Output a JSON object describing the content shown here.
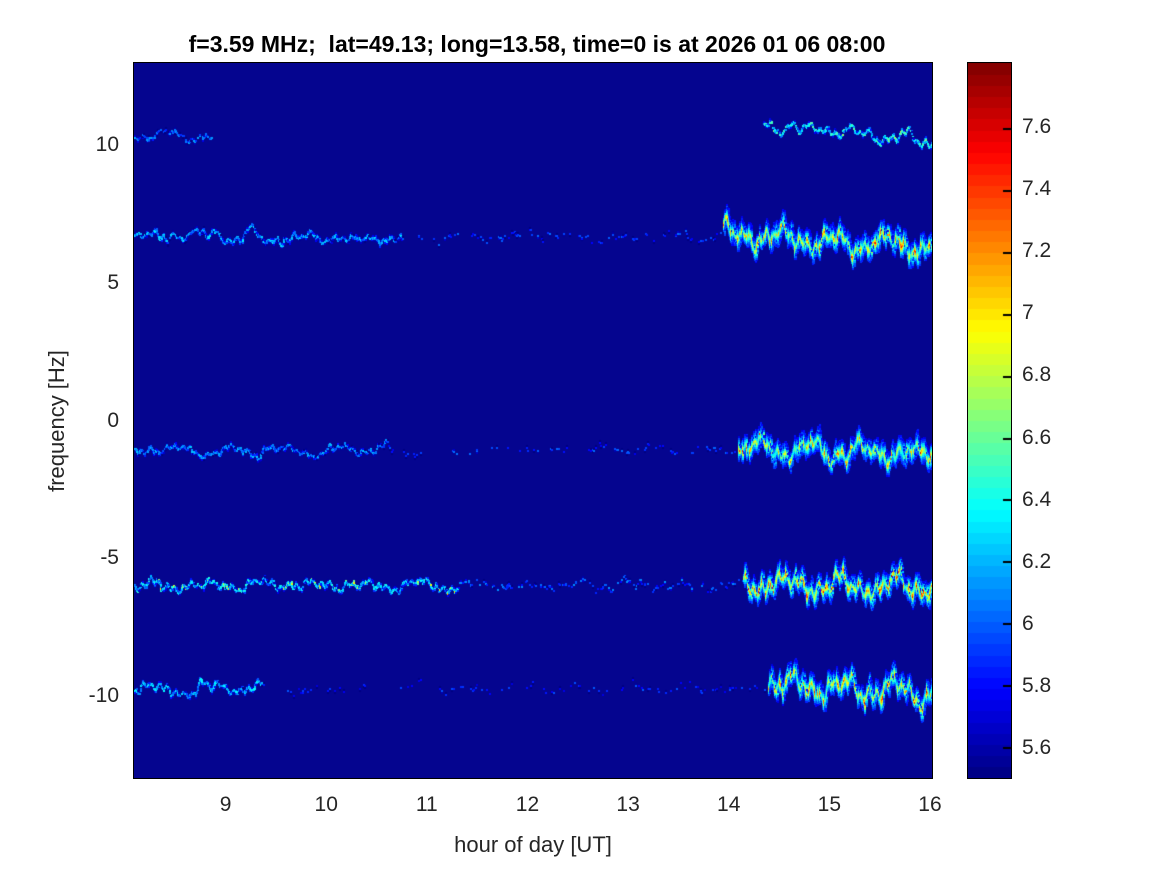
{
  "chart_data": {
    "type": "heatmap",
    "title": "f=3.59 MHz;  lat=49.13; long=13.58, time=0 is at 2026 01 06 08:00",
    "subtitle": "",
    "grid": false,
    "background_color": "#05058f",
    "x_axis": {
      "label": "hour of day [UT]",
      "range": [
        8.08,
        16.03
      ],
      "ticks": [
        {
          "label": "9",
          "value": 9
        },
        {
          "label": "10",
          "value": 10
        },
        {
          "label": "11",
          "value": 11
        },
        {
          "label": "12",
          "value": 12
        },
        {
          "label": "13",
          "value": 13
        },
        {
          "label": "14",
          "value": 14
        },
        {
          "label": "15",
          "value": 15
        },
        {
          "label": "16",
          "value": 16
        }
      ]
    },
    "y_axis": {
      "label": "frequency [Hz]",
      "range": [
        -13,
        13
      ],
      "ticks": [
        {
          "label": "10",
          "value": 10
        },
        {
          "label": "5",
          "value": 5
        },
        {
          "label": "0",
          "value": 0
        },
        {
          "label": "-5",
          "value": -5
        },
        {
          "label": "-10",
          "value": -10
        }
      ]
    },
    "colorbar": {
      "colormap": "jet",
      "range": [
        5.5,
        7.81
      ],
      "ticks": [
        {
          "label": "7.6",
          "value": 7.6
        },
        {
          "label": "7.4",
          "value": 7.4
        },
        {
          "label": "7.2",
          "value": 7.2
        },
        {
          "label": "7",
          "value": 7.0
        },
        {
          "label": "6.8",
          "value": 6.8
        },
        {
          "label": "6.6",
          "value": 6.6
        },
        {
          "label": "6.4",
          "value": 6.4
        },
        {
          "label": "6.2",
          "value": 6.2
        },
        {
          "label": "6",
          "value": 6.0
        },
        {
          "label": "5.8",
          "value": 5.8
        },
        {
          "label": "5.6",
          "value": 5.6
        }
      ]
    },
    "traces": [
      {
        "name": "doppler-mode-plus10",
        "center_hz": 10.35,
        "segments": [
          {
            "t0": 8.08,
            "t1": 8.85,
            "style": "line",
            "density": 0.5,
            "level": 5.95,
            "var": 0.35,
            "amp": 0.2
          },
          {
            "t0": 14.35,
            "t1": 16.03,
            "style": "line",
            "density": 0.78,
            "level": 6.25,
            "var": 0.5,
            "amp": 0.3,
            "off0": 0.45,
            "off1": -0.2,
            "fleck": 0.05,
            "peak": 6.9
          }
        ]
      },
      {
        "name": "doppler-mode-plus7",
        "center_hz": 6.7,
        "segments": [
          {
            "t0": 8.08,
            "t1": 10.75,
            "style": "line",
            "density": 0.88,
            "level": 6.05,
            "var": 0.45,
            "amp": 0.23,
            "off0": 0.05,
            "off1": -0.05
          },
          {
            "t0": 10.75,
            "t1": 13.95,
            "style": "sparse",
            "density": 0.12,
            "level": 5.85,
            "var": 0.3,
            "amp": 0.2
          },
          {
            "t0": 13.95,
            "t1": 16.03,
            "style": "strong",
            "density": 0.93,
            "level": 6.35,
            "peak": 7.65,
            "amp": 0.5,
            "off0": 0.1,
            "off1": -0.35
          }
        ]
      },
      {
        "name": "doppler-mode-minus1",
        "center_hz": -1.05,
        "segments": [
          {
            "t0": 8.08,
            "t1": 10.6,
            "style": "line",
            "density": 0.82,
            "level": 6.0,
            "var": 0.4,
            "amp": 0.2
          },
          {
            "t0": 10.6,
            "t1": 14.1,
            "style": "sparse",
            "density": 0.1,
            "level": 5.85,
            "var": 0.3,
            "amp": 0.18
          },
          {
            "t0": 14.1,
            "t1": 16.03,
            "style": "strong",
            "density": 0.9,
            "level": 6.3,
            "peak": 7.6,
            "amp": 0.45,
            "off0": 0.05,
            "off1": -0.1
          }
        ]
      },
      {
        "name": "doppler-mode-minus6",
        "center_hz": -5.95,
        "segments": [
          {
            "t0": 8.08,
            "t1": 11.3,
            "style": "line",
            "density": 0.95,
            "level": 6.15,
            "var": 0.5,
            "amp": 0.27,
            "fleck": 0.07,
            "peak": 7.1
          },
          {
            "t0": 11.3,
            "t1": 14.15,
            "style": "sparse",
            "density": 0.22,
            "level": 5.9,
            "var": 0.35,
            "amp": 0.22
          },
          {
            "t0": 14.15,
            "t1": 16.03,
            "style": "strong",
            "density": 0.97,
            "level": 6.45,
            "peak": 7.8,
            "amp": 0.55
          }
        ]
      },
      {
        "name": "doppler-mode-minus10",
        "center_hz": -9.7,
        "segments": [
          {
            "t0": 8.08,
            "t1": 9.35,
            "style": "line",
            "density": 0.9,
            "level": 6.1,
            "var": 0.45,
            "amp": 0.3
          },
          {
            "t0": 9.35,
            "t1": 14.4,
            "style": "sparse",
            "density": 0.08,
            "level": 5.8,
            "var": 0.3,
            "amp": 0.2
          },
          {
            "t0": 14.4,
            "t1": 16.03,
            "style": "strong",
            "density": 0.85,
            "level": 6.3,
            "peak": 7.7,
            "amp": 0.6,
            "off0": 0.15,
            "off1": -0.15
          }
        ]
      }
    ]
  }
}
